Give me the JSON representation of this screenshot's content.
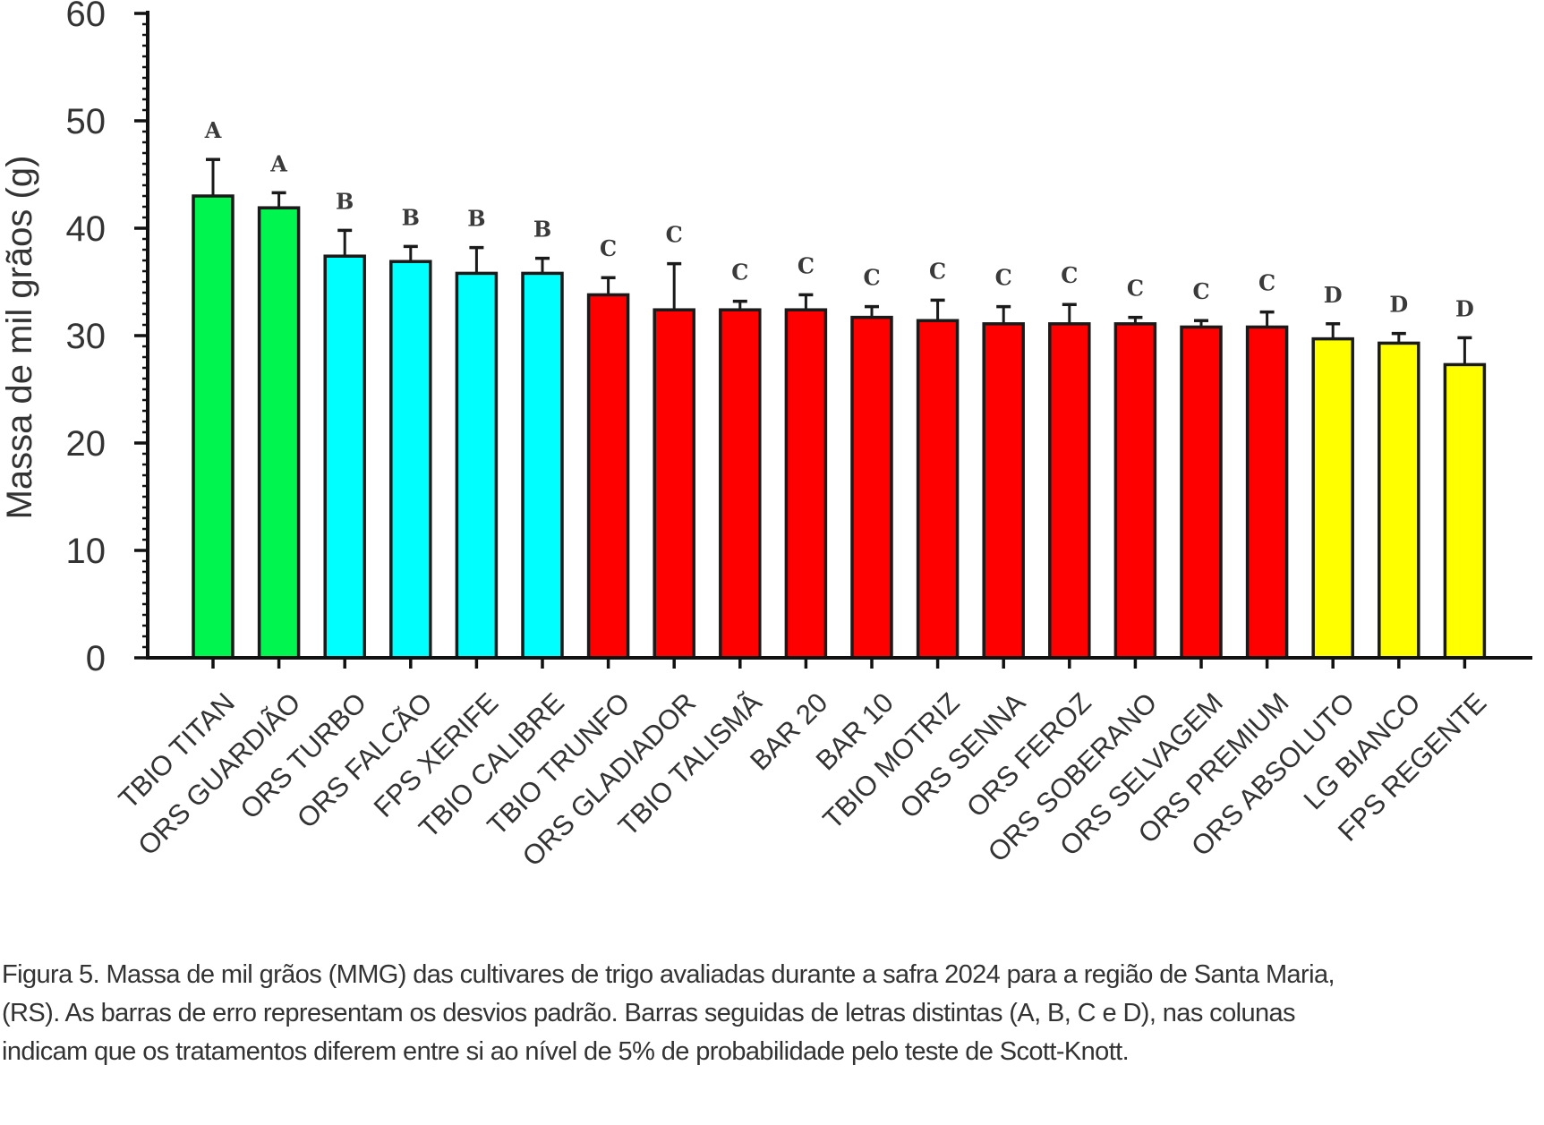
{
  "chart_data": {
    "type": "bar",
    "title": "",
    "xlabel": "",
    "ylabel": "Massa de mil grãos (g)",
    "ylim": [
      0,
      60
    ],
    "yticks": [
      0,
      10,
      20,
      30,
      40,
      50,
      60
    ],
    "grid": false,
    "legend": "none",
    "categories": [
      "TBIO TITAN",
      "ORS GUARDIÃO",
      "ORS TURBO",
      "ORS FALCÃO",
      "FPS XERIFE",
      "TBIO CALIBRE",
      "TBIO TRUNFO",
      "ORS GLADIADOR",
      "TBIO TALISMÃ",
      "BAR 20",
      "BAR 10",
      "TBIO MOTRIZ",
      "ORS SENNA",
      "ORS FEROZ",
      "ORS SOBERANO",
      "ORS SELVAGEM",
      "ORS PREMIUM",
      "ORS ABSOLUTO",
      "LG BIANCO",
      "FPS REGENTE"
    ],
    "values": [
      43.0,
      41.9,
      37.4,
      36.9,
      35.8,
      35.8,
      33.8,
      32.4,
      32.4,
      32.4,
      31.7,
      31.4,
      31.1,
      31.1,
      31.1,
      30.8,
      30.8,
      29.7,
      29.3,
      27.3
    ],
    "error": [
      3.4,
      1.4,
      2.4,
      1.4,
      2.4,
      1.4,
      1.6,
      4.3,
      0.8,
      1.4,
      1.0,
      1.9,
      1.6,
      1.8,
      0.6,
      0.6,
      1.4,
      1.4,
      0.9,
      2.5
    ],
    "groups": [
      "A",
      "A",
      "B",
      "B",
      "B",
      "B",
      "C",
      "C",
      "C",
      "C",
      "C",
      "C",
      "C",
      "C",
      "C",
      "C",
      "C",
      "D",
      "D",
      "D"
    ],
    "group_colors": {
      "A": "#00F54F",
      "B": "#00FFFF",
      "C": "#FF0000",
      "D": "#FFFF00"
    }
  },
  "caption": {
    "lines": [
      "Figura 5. Massa de mil grãos (MMG) das cultivares de trigo avaliadas durante a safra 2024 para a região de Santa Maria,",
      "(RS). As barras de erro representam os desvios padrão. Barras seguidas de letras distintas (A, B, C e D), nas colunas",
      "indicam que os tratamentos diferem entre si ao nível de 5% de probabilidade pelo teste de Scott-Knott."
    ]
  }
}
